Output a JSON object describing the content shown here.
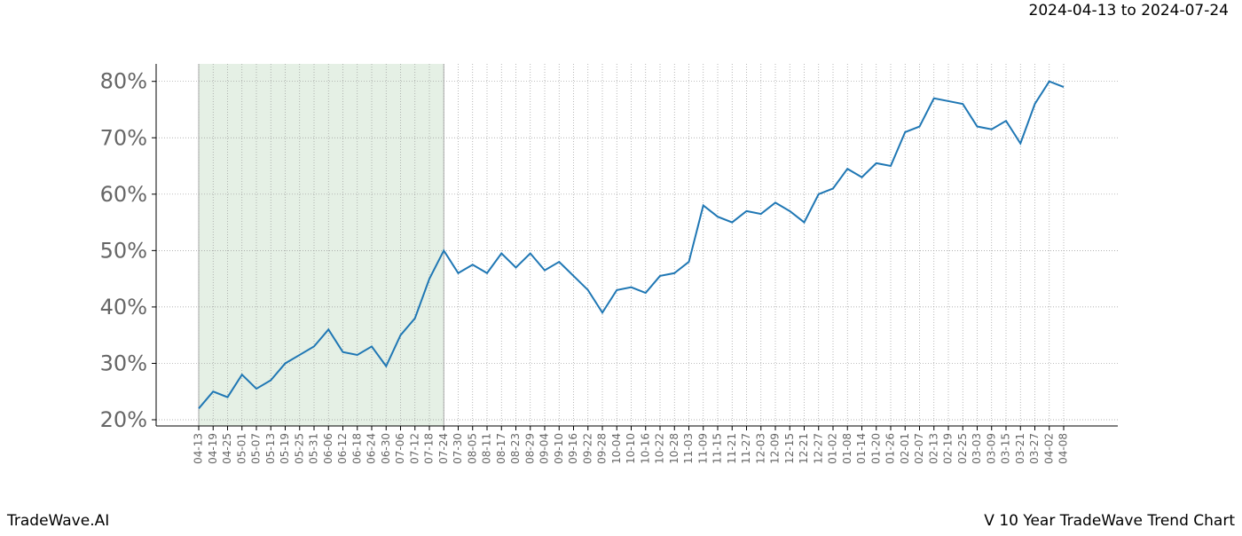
{
  "chart_data": {
    "type": "line",
    "title": "2024-04-13 to 2024-07-24",
    "footer_left": "TradeWave.AI",
    "footer_right": "V 10 Year TradeWave Trend Chart",
    "categories": [
      "04-13",
      "04-19",
      "04-25",
      "05-01",
      "05-07",
      "05-13",
      "05-19",
      "05-25",
      "05-31",
      "06-06",
      "06-12",
      "06-18",
      "06-24",
      "06-30",
      "07-06",
      "07-12",
      "07-18",
      "07-24",
      "07-30",
      "08-05",
      "08-11",
      "08-17",
      "08-23",
      "08-29",
      "09-04",
      "09-10",
      "09-16",
      "09-22",
      "09-28",
      "10-04",
      "10-10",
      "10-16",
      "10-22",
      "10-28",
      "11-03",
      "11-09",
      "11-15",
      "11-21",
      "11-27",
      "12-03",
      "12-09",
      "12-15",
      "12-21",
      "12-27",
      "01-02",
      "01-08",
      "01-14",
      "01-20",
      "01-26",
      "02-01",
      "02-07",
      "02-13",
      "02-19",
      "02-25",
      "03-03",
      "03-09",
      "03-15",
      "03-21",
      "03-27",
      "04-02",
      "04-08"
    ],
    "values": [
      22,
      25,
      24,
      28,
      25.5,
      27,
      30,
      31.5,
      33,
      36,
      32,
      31.5,
      33,
      29.5,
      35,
      38,
      45,
      50,
      46,
      47.5,
      46,
      49.5,
      47,
      49.5,
      46.5,
      48,
      45.5,
      43,
      39,
      43,
      43.5,
      42.5,
      45.5,
      46,
      48,
      58,
      56,
      55,
      57,
      56.5,
      58.5,
      57,
      55,
      60,
      61,
      64.5,
      63,
      65.5,
      65,
      71,
      72,
      77,
      76.5,
      76,
      72,
      71.5,
      73,
      69,
      76,
      80,
      79
    ],
    "color": "#1f77b4",
    "shaded_range": [
      "04-13",
      "07-24"
    ],
    "shade_color": "#e5f0e5",
    "ylim": [
      18.9,
      83.1
    ],
    "yticks": [
      {
        "value": 20,
        "label": "20%"
      },
      {
        "value": 30,
        "label": "30%"
      },
      {
        "value": 40,
        "label": "40%"
      },
      {
        "value": 50,
        "label": "50%"
      },
      {
        "value": 60,
        "label": "60%"
      },
      {
        "value": 70,
        "label": "70%"
      },
      {
        "value": 80,
        "label": "80%"
      }
    ],
    "grid": true
  }
}
